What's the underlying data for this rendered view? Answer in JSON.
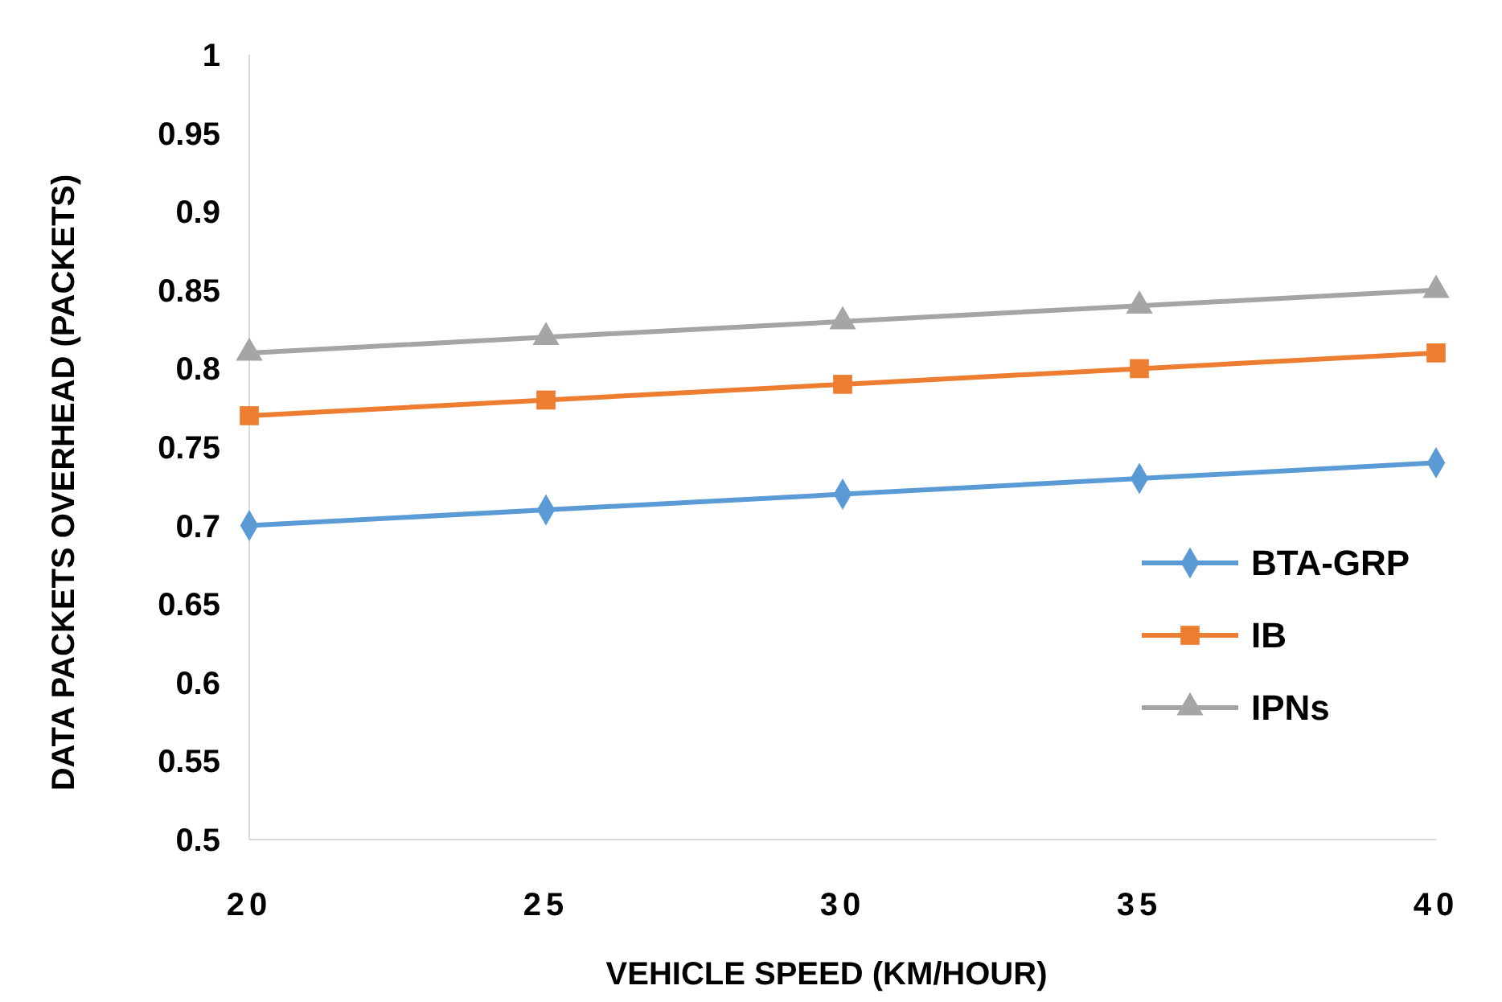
{
  "chart_data": {
    "type": "line",
    "xlabel": "VEHICLE SPEED (KM/HOUR)",
    "ylabel": "DATA PACKETS OVERHEAD (PACKETS)",
    "x": [
      20,
      25,
      30,
      35,
      40
    ],
    "xlim": [
      20,
      40
    ],
    "xticks": [
      20,
      25,
      30,
      35,
      40
    ],
    "ylim": [
      0.5,
      1
    ],
    "yticks": [
      0.5,
      0.55,
      0.6,
      0.65,
      0.7,
      0.75,
      0.8,
      0.85,
      0.9,
      0.95,
      1
    ],
    "grid": false,
    "legend": "right",
    "line_style": "solid",
    "series": [
      {
        "name": "BTA-GRP",
        "color": "#5b9bd5",
        "marker": "diamond",
        "values": [
          0.7,
          0.71,
          0.72,
          0.73,
          0.74
        ]
      },
      {
        "name": "IB",
        "color": "#ed7d31",
        "marker": "square",
        "values": [
          0.77,
          0.78,
          0.79,
          0.8,
          0.81
        ]
      },
      {
        "name": "IPNs",
        "color": "#a5a5a5",
        "marker": "triangle",
        "values": [
          0.81,
          0.82,
          0.83,
          0.84,
          0.85
        ]
      }
    ]
  }
}
